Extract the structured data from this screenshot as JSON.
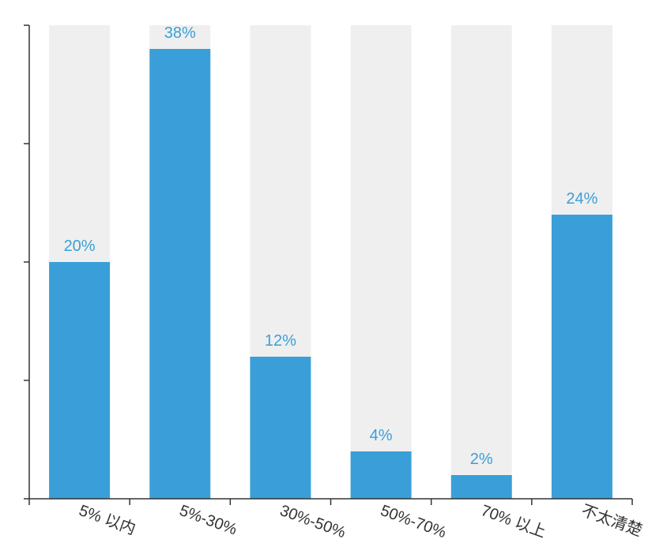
{
  "chart_data": {
    "type": "bar",
    "categories": [
      "5% 以内",
      "5%-30%",
      "30%-50%",
      "50%-70%",
      "70% 以上",
      "不太清楚"
    ],
    "values": [
      20,
      38,
      12,
      4,
      2,
      24
    ],
    "value_labels": [
      "20%",
      "38%",
      "12%",
      "4%",
      "2%",
      "24%"
    ],
    "color": "#3a9fd8",
    "ylim": [
      0,
      40
    ],
    "yticks": [
      0,
      10,
      20,
      30,
      40
    ]
  }
}
